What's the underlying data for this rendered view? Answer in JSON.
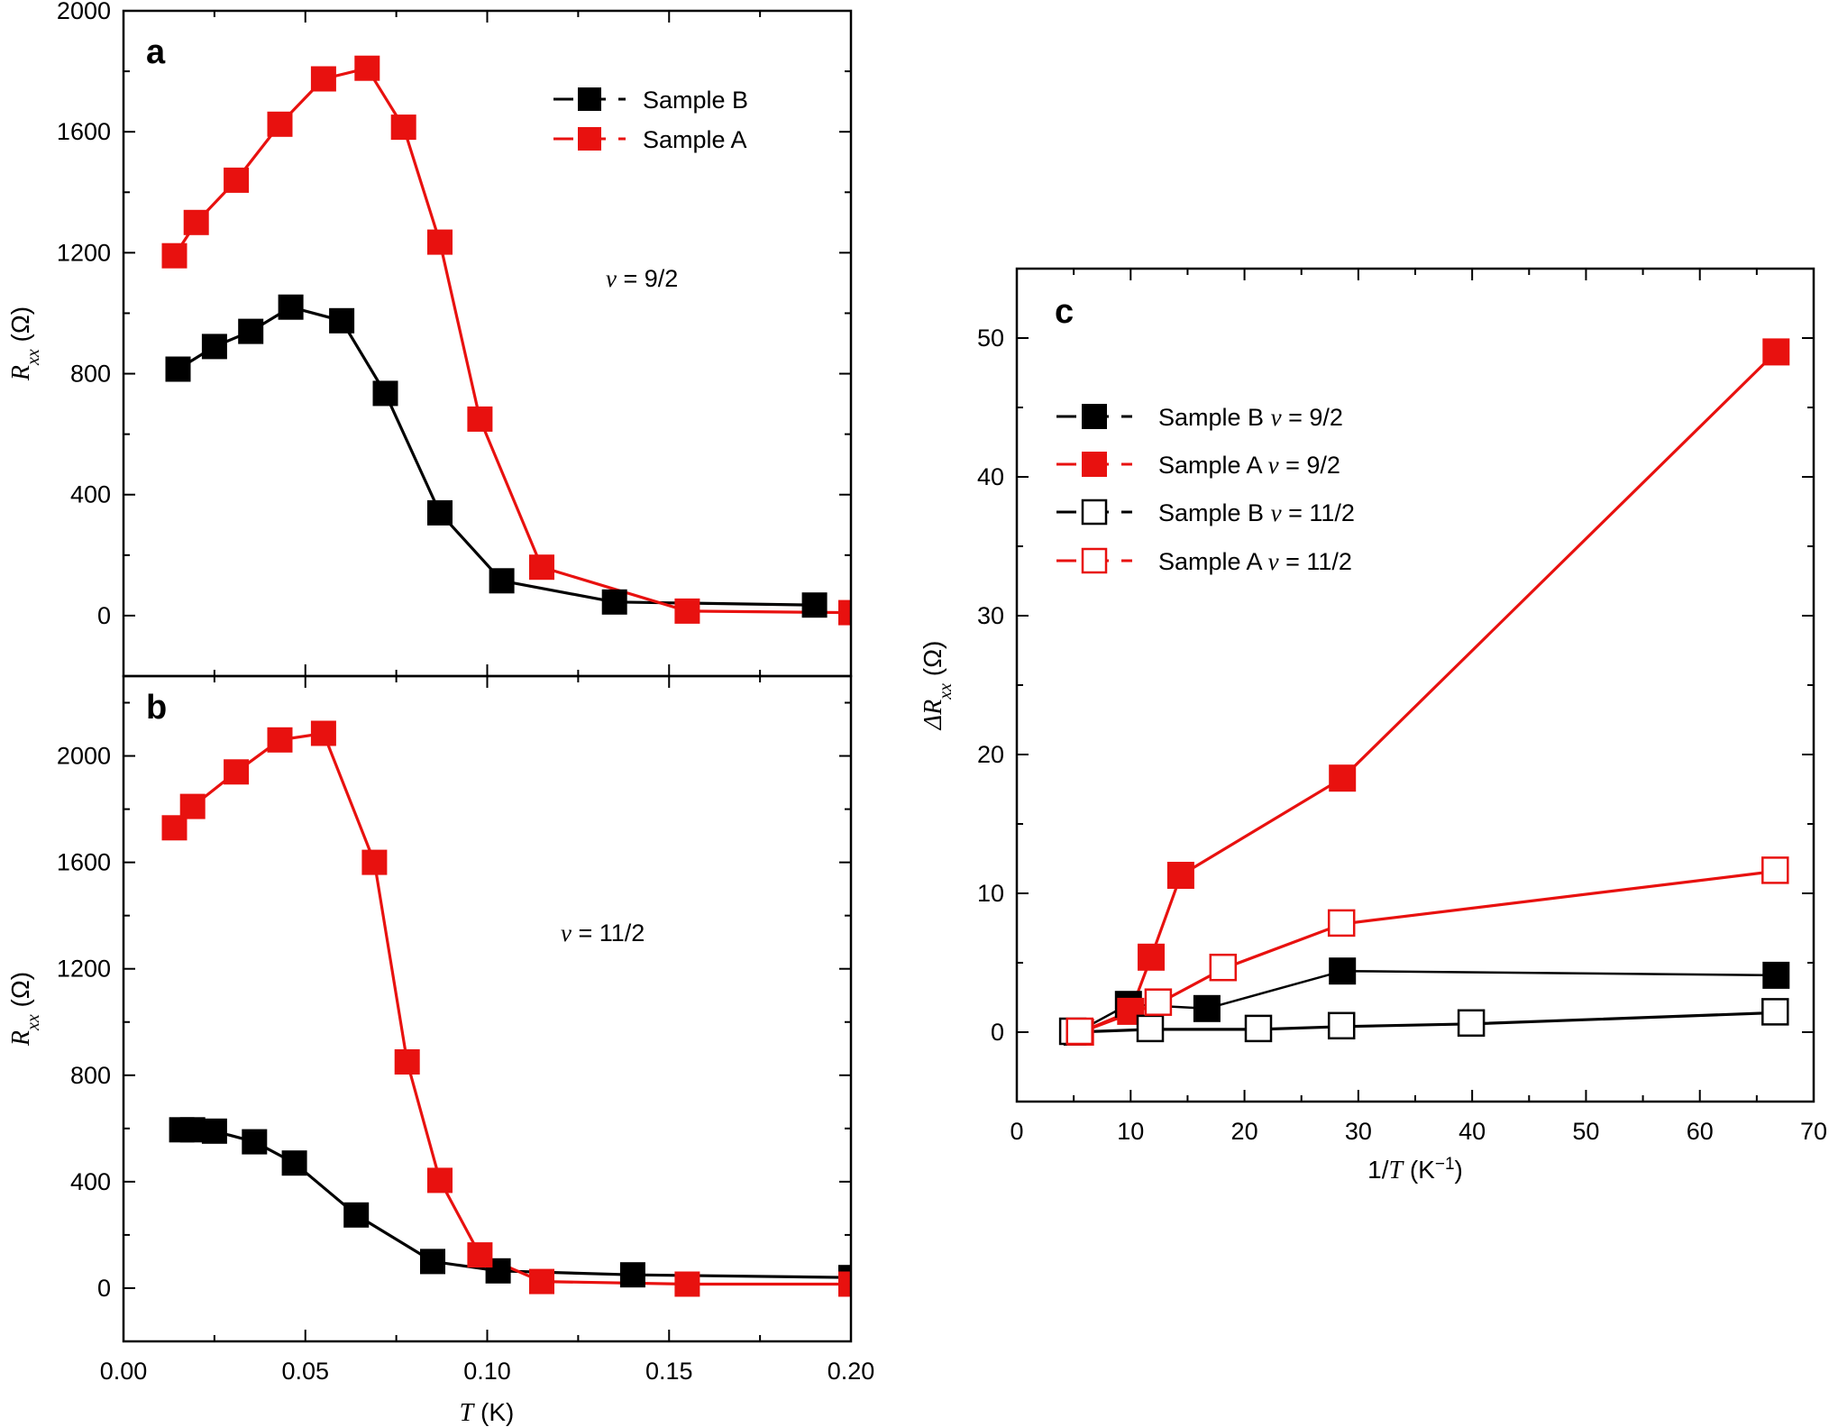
{
  "chart_data": [
    {
      "panel": "a",
      "type": "line",
      "xlabel": "",
      "ylabel": "R_xx (Ω)",
      "ylabel_main": "R",
      "ylabel_sub": "xx",
      "ylabel_unit": " (Ω)",
      "xlim": [
        0.0,
        0.2
      ],
      "ylim": [
        -200,
        2000
      ],
      "yticks": [
        0,
        400,
        800,
        1200,
        1600,
        2000
      ],
      "ytick_labels": [
        "0",
        "400",
        "800",
        "1200",
        "1600",
        "2000"
      ],
      "annotation": {
        "prefix": "v",
        "text": " = 9/2"
      },
      "legend_position": "top-right",
      "series": [
        {
          "name": "Sample B",
          "color": "#000000",
          "marker": "filled-square",
          "x": [
            0.015,
            0.025,
            0.035,
            0.046,
            0.06,
            0.072,
            0.087,
            0.104,
            0.135,
            0.19
          ],
          "y": [
            815,
            890,
            940,
            1020,
            975,
            735,
            340,
            115,
            45,
            35
          ]
        },
        {
          "name": "Sample A",
          "color": "#e8110f",
          "marker": "filled-square",
          "x": [
            0.014,
            0.02,
            0.031,
            0.043,
            0.055,
            0.067,
            0.077,
            0.087,
            0.098,
            0.115,
            0.155,
            0.2
          ],
          "y": [
            1190,
            1300,
            1440,
            1625,
            1775,
            1810,
            1615,
            1235,
            650,
            160,
            15,
            10
          ]
        }
      ]
    },
    {
      "panel": "b",
      "type": "line",
      "xlabel_main": "T",
      "xlabel_unit": " (K)",
      "ylabel_main": "R",
      "ylabel_sub": "xx",
      "ylabel_unit": " (Ω)",
      "xlim": [
        0.0,
        0.2
      ],
      "ylim": [
        -200,
        2300
      ],
      "xticks": [
        0.0,
        0.05,
        0.1,
        0.15,
        0.2
      ],
      "xtick_labels": [
        "0.00",
        "0.05",
        "0.10",
        "0.15",
        "0.20"
      ],
      "yticks": [
        0,
        400,
        800,
        1200,
        1600,
        2000
      ],
      "ytick_labels": [
        "0",
        "400",
        "800",
        "1200",
        "1600",
        "2000"
      ],
      "annotation": {
        "prefix": "v",
        "text": " = 11/2"
      },
      "series": [
        {
          "name": "Sample B",
          "color": "#000000",
          "marker": "filled-square",
          "x": [
            0.016,
            0.019,
            0.025,
            0.036,
            0.047,
            0.064,
            0.085,
            0.103,
            0.14,
            0.2
          ],
          "y": [
            595,
            595,
            590,
            550,
            470,
            275,
            100,
            65,
            50,
            40
          ]
        },
        {
          "name": "Sample A",
          "color": "#e8110f",
          "marker": "filled-square",
          "x": [
            0.014,
            0.019,
            0.031,
            0.043,
            0.055,
            0.069,
            0.078,
            0.087,
            0.098,
            0.115,
            0.155,
            0.2
          ],
          "y": [
            1730,
            1810,
            1940,
            2060,
            2085,
            1600,
            850,
            405,
            125,
            25,
            15,
            15
          ]
        }
      ]
    },
    {
      "panel": "c",
      "type": "line",
      "xlabel_main": "1/",
      "xlabel_italic": "T",
      "xlabel_unit": " (K",
      "xlabel_sup": "−1",
      "xlabel_close": ")",
      "ylabel_main": "ΔR",
      "ylabel_sub": "xx",
      "ylabel_unit": " (Ω)",
      "xlim": [
        0,
        70
      ],
      "ylim": [
        -5,
        55
      ],
      "xticks": [
        0,
        10,
        20,
        30,
        40,
        50,
        60,
        70
      ],
      "xtick_labels": [
        "0",
        "10",
        "20",
        "30",
        "40",
        "50",
        "60",
        "70"
      ],
      "yticks": [
        0,
        10,
        20,
        30,
        40,
        50
      ],
      "ytick_labels": [
        "0",
        "10",
        "20",
        "30",
        "40",
        "50"
      ],
      "legend_position": "top-left",
      "series": [
        {
          "name": "Sample B",
          "nu": " = 9/2",
          "color": "#000000",
          "marker": "filled-square",
          "x": [
            5.3,
            9.8,
            16.7,
            28.6,
            66.7
          ],
          "y": [
            0.0,
            2.0,
            1.7,
            4.4,
            4.1
          ]
        },
        {
          "name": "Sample A",
          "nu": " = 9/2",
          "color": "#e8110f",
          "marker": "filled-square",
          "x": [
            5.6,
            10.0,
            11.8,
            14.4,
            28.6,
            66.7
          ],
          "y": [
            0.0,
            1.5,
            5.4,
            11.3,
            18.3,
            49.0
          ]
        },
        {
          "name": "Sample B",
          "nu": " = 11/2",
          "color": "#000000",
          "marker": "open-square",
          "x": [
            5.0,
            11.8,
            21.3,
            28.6,
            40.0,
            66.7
          ],
          "y": [
            0.0,
            0.2,
            0.2,
            0.4,
            0.6,
            1.4
          ]
        },
        {
          "name": "Sample A",
          "nu": " = 11/2",
          "color": "#e8110f",
          "marker": "open-square",
          "x": [
            5.6,
            12.5,
            18.2,
            28.6,
            66.7
          ],
          "y": [
            0.0,
            2.1,
            4.6,
            7.8,
            11.6
          ]
        }
      ]
    }
  ]
}
